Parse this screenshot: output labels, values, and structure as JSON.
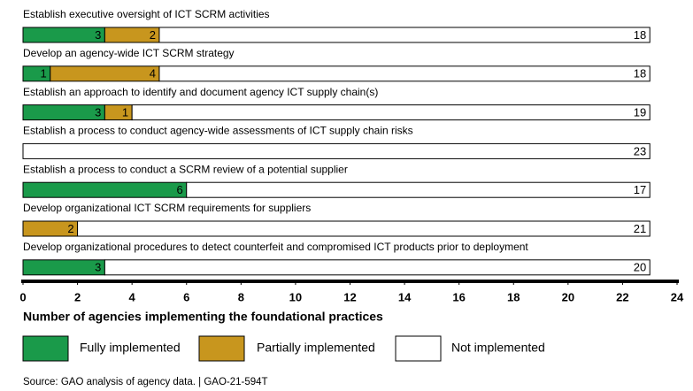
{
  "chart_data": {
    "type": "stacked-barh",
    "categories": [
      "Establish executive oversight of ICT SCRM activities",
      "Develop an agency-wide ICT SCRM strategy",
      "Establish an approach to identify and document agency ICT supply chain(s)",
      "Establish a process to conduct agency-wide assessments of ICT supply chain risks",
      "Establish a process to conduct a SCRM review of a potential supplier",
      "Develop organizational ICT SCRM requirements for suppliers",
      "Develop organizational procedures to detect counterfeit and compromised ICT products prior to deployment"
    ],
    "series": [
      {
        "name": "Fully implemented",
        "color": "#1a9a4a",
        "values": [
          3,
          1,
          3,
          0,
          6,
          0,
          3
        ]
      },
      {
        "name": "Partially implemented",
        "color": "#c8961e",
        "values": [
          2,
          4,
          1,
          0,
          0,
          2,
          0
        ]
      },
      {
        "name": "Not implemented",
        "color": "#ffffff",
        "values": [
          18,
          18,
          19,
          23,
          17,
          21,
          20
        ]
      }
    ],
    "xlabel": "Number of agencies implementing the foundational practices",
    "xlim": [
      0,
      24
    ],
    "xticks": [
      0,
      2,
      4,
      6,
      8,
      10,
      12,
      14,
      16,
      18,
      20,
      22,
      24
    ],
    "source": "Source: GAO analysis of agency data.  |  GAO-21-594T"
  }
}
